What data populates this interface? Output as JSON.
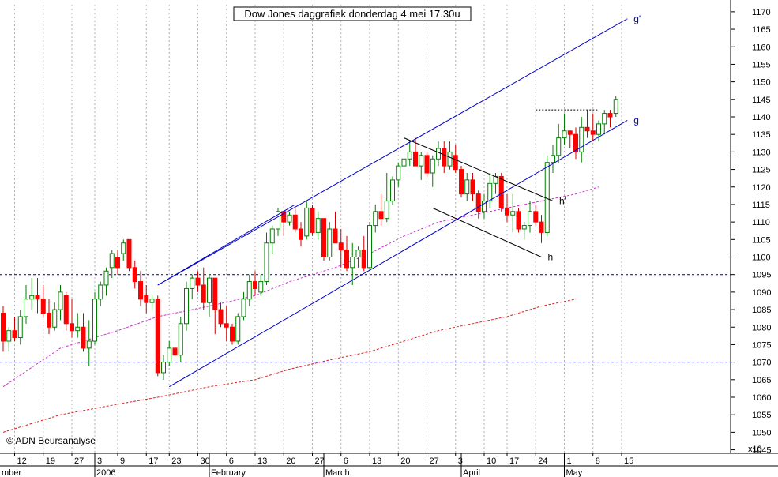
{
  "chart_data": {
    "type": "candlestick",
    "title": "Dow Jones daggrafiek donderdag 4 mei  17.30u",
    "watermark": "© ADN Beursanalyse",
    "y_axis": {
      "position": "right",
      "ylim": [
        1044,
        1172
      ],
      "ticks": [
        1045,
        1050,
        1055,
        1060,
        1065,
        1070,
        1075,
        1080,
        1085,
        1090,
        1095,
        1100,
        1105,
        1110,
        1115,
        1120,
        1125,
        1130,
        1135,
        1140,
        1145,
        1150,
        1155,
        1160,
        1165,
        1170
      ],
      "unit_label": "x10"
    },
    "x_axis": {
      "day_ticks": [
        {
          "label": "12",
          "idx": 2
        },
        {
          "label": "19",
          "idx": 7
        },
        {
          "label": "27",
          "idx": 12
        },
        {
          "label": "3",
          "idx": 16
        },
        {
          "label": "9",
          "idx": 20
        },
        {
          "label": "17",
          "idx": 25
        },
        {
          "label": "23",
          "idx": 29
        },
        {
          "label": "30",
          "idx": 34
        },
        {
          "label": "6",
          "idx": 39
        },
        {
          "label": "13",
          "idx": 44
        },
        {
          "label": "20",
          "idx": 49
        },
        {
          "label": "27",
          "idx": 54
        },
        {
          "label": "6",
          "idx": 59
        },
        {
          "label": "13",
          "idx": 64
        },
        {
          "label": "20",
          "idx": 69
        },
        {
          "label": "27",
          "idx": 74
        },
        {
          "label": "3",
          "idx": 79
        },
        {
          "label": "10",
          "idx": 84
        },
        {
          "label": "17",
          "idx": 88
        },
        {
          "label": "24",
          "idx": 93
        },
        {
          "label": "1",
          "idx": 98
        },
        {
          "label": "8",
          "idx": 103
        },
        {
          "label": "15",
          "idx": 108
        }
      ],
      "month_labels": [
        {
          "label": "mber",
          "idx": -1
        },
        {
          "label": "2006",
          "idx": 16
        },
        {
          "label": "February",
          "idx": 36
        },
        {
          "label": "March",
          "idx": 56
        },
        {
          "label": "April",
          "idx": 80
        },
        {
          "label": "May",
          "idx": 98
        }
      ]
    },
    "candles": [
      {
        "o": 1084,
        "h": 1086,
        "l": 1073,
        "c": 1076
      },
      {
        "o": 1076,
        "h": 1080,
        "l": 1073,
        "c": 1079
      },
      {
        "o": 1079,
        "h": 1083,
        "l": 1076,
        "c": 1077
      },
      {
        "o": 1077,
        "h": 1085,
        "l": 1075,
        "c": 1083
      },
      {
        "o": 1083,
        "h": 1092,
        "l": 1081,
        "c": 1088
      },
      {
        "o": 1088,
        "h": 1094,
        "l": 1085,
        "c": 1089
      },
      {
        "o": 1089,
        "h": 1094,
        "l": 1084,
        "c": 1088
      },
      {
        "o": 1088,
        "h": 1092,
        "l": 1083,
        "c": 1084
      },
      {
        "o": 1084,
        "h": 1088,
        "l": 1078,
        "c": 1080
      },
      {
        "o": 1080,
        "h": 1087,
        "l": 1079,
        "c": 1085
      },
      {
        "o": 1085,
        "h": 1092,
        "l": 1082,
        "c": 1090
      },
      {
        "o": 1089,
        "h": 1090,
        "l": 1079,
        "c": 1081
      },
      {
        "o": 1081,
        "h": 1088,
        "l": 1077,
        "c": 1079
      },
      {
        "o": 1079,
        "h": 1084,
        "l": 1077,
        "c": 1080
      },
      {
        "o": 1080,
        "h": 1084,
        "l": 1073,
        "c": 1074
      },
      {
        "o": 1074,
        "h": 1082,
        "l": 1069,
        "c": 1076
      },
      {
        "o": 1076,
        "h": 1090,
        "l": 1075,
        "c": 1088
      },
      {
        "o": 1088,
        "h": 1093,
        "l": 1086,
        "c": 1092
      },
      {
        "o": 1092,
        "h": 1097,
        "l": 1089,
        "c": 1096
      },
      {
        "o": 1097,
        "h": 1102,
        "l": 1094,
        "c": 1101
      },
      {
        "o": 1100,
        "h": 1102,
        "l": 1095,
        "c": 1097
      },
      {
        "o": 1101,
        "h": 1105,
        "l": 1099,
        "c": 1104
      },
      {
        "o": 1105,
        "h": 1105,
        "l": 1096,
        "c": 1097
      },
      {
        "o": 1097,
        "h": 1099,
        "l": 1091,
        "c": 1093
      },
      {
        "o": 1093,
        "h": 1096,
        "l": 1086,
        "c": 1088
      },
      {
        "o": 1089,
        "h": 1092,
        "l": 1084,
        "c": 1087
      },
      {
        "o": 1087,
        "h": 1089,
        "l": 1085,
        "c": 1088
      },
      {
        "o": 1088,
        "h": 1089,
        "l": 1066,
        "c": 1067
      },
      {
        "o": 1067,
        "h": 1072,
        "l": 1065,
        "c": 1070
      },
      {
        "o": 1070,
        "h": 1076,
        "l": 1069,
        "c": 1074
      },
      {
        "o": 1074,
        "h": 1081,
        "l": 1069,
        "c": 1072
      },
      {
        "o": 1072,
        "h": 1083,
        "l": 1070,
        "c": 1081
      },
      {
        "o": 1081,
        "h": 1093,
        "l": 1079,
        "c": 1091
      },
      {
        "o": 1091,
        "h": 1095,
        "l": 1088,
        "c": 1094
      },
      {
        "o": 1094,
        "h": 1096,
        "l": 1090,
        "c": 1092
      },
      {
        "o": 1092,
        "h": 1097,
        "l": 1085,
        "c": 1087
      },
      {
        "o": 1087,
        "h": 1095,
        "l": 1083,
        "c": 1094
      },
      {
        "o": 1094,
        "h": 1094,
        "l": 1078,
        "c": 1085
      },
      {
        "o": 1085,
        "h": 1087,
        "l": 1080,
        "c": 1081
      },
      {
        "o": 1081,
        "h": 1086,
        "l": 1076,
        "c": 1080
      },
      {
        "o": 1080,
        "h": 1081,
        "l": 1075,
        "c": 1076
      },
      {
        "o": 1076,
        "h": 1084,
        "l": 1075,
        "c": 1083
      },
      {
        "o": 1083,
        "h": 1090,
        "l": 1082,
        "c": 1088
      },
      {
        "o": 1088,
        "h": 1095,
        "l": 1086,
        "c": 1093
      },
      {
        "o": 1093,
        "h": 1096,
        "l": 1089,
        "c": 1091
      },
      {
        "o": 1090,
        "h": 1095,
        "l": 1089,
        "c": 1093
      },
      {
        "o": 1093,
        "h": 1107,
        "l": 1092,
        "c": 1104
      },
      {
        "o": 1104,
        "h": 1109,
        "l": 1101,
        "c": 1108
      },
      {
        "o": 1108,
        "h": 1114,
        "l": 1106,
        "c": 1113
      },
      {
        "o": 1113,
        "h": 1113,
        "l": 1106,
        "c": 1110
      },
      {
        "o": 1110,
        "h": 1113,
        "l": 1109,
        "c": 1112
      },
      {
        "o": 1112,
        "h": 1114,
        "l": 1107,
        "c": 1108
      },
      {
        "o": 1108,
        "h": 1110,
        "l": 1103,
        "c": 1105
      },
      {
        "o": 1106,
        "h": 1116,
        "l": 1105,
        "c": 1114
      },
      {
        "o": 1114,
        "h": 1115,
        "l": 1106,
        "c": 1107
      },
      {
        "o": 1107,
        "h": 1113,
        "l": 1105,
        "c": 1111
      },
      {
        "o": 1111,
        "h": 1111,
        "l": 1099,
        "c": 1100
      },
      {
        "o": 1100,
        "h": 1110,
        "l": 1099,
        "c": 1108
      },
      {
        "o": 1108,
        "h": 1113,
        "l": 1104,
        "c": 1104
      },
      {
        "o": 1104,
        "h": 1108,
        "l": 1097,
        "c": 1102
      },
      {
        "o": 1102,
        "h": 1106,
        "l": 1096,
        "c": 1097
      },
      {
        "o": 1097,
        "h": 1104,
        "l": 1092,
        "c": 1100
      },
      {
        "o": 1100,
        "h": 1103,
        "l": 1097,
        "c": 1102
      },
      {
        "o": 1102,
        "h": 1106,
        "l": 1096,
        "c": 1097
      },
      {
        "o": 1097,
        "h": 1110,
        "l": 1096,
        "c": 1109
      },
      {
        "o": 1109,
        "h": 1115,
        "l": 1107,
        "c": 1113
      },
      {
        "o": 1113,
        "h": 1118,
        "l": 1109,
        "c": 1111
      },
      {
        "o": 1111,
        "h": 1124,
        "l": 1110,
        "c": 1116
      },
      {
        "o": 1116,
        "h": 1123,
        "l": 1115,
        "c": 1122
      },
      {
        "o": 1122,
        "h": 1127,
        "l": 1120,
        "c": 1126
      },
      {
        "o": 1126,
        "h": 1130,
        "l": 1122,
        "c": 1128
      },
      {
        "o": 1128,
        "h": 1133,
        "l": 1126,
        "c": 1130
      },
      {
        "o": 1130,
        "h": 1134,
        "l": 1126,
        "c": 1126
      },
      {
        "o": 1126,
        "h": 1130,
        "l": 1122,
        "c": 1129
      },
      {
        "o": 1129,
        "h": 1130,
        "l": 1123,
        "c": 1124
      },
      {
        "o": 1124,
        "h": 1129,
        "l": 1120,
        "c": 1128
      },
      {
        "o": 1128,
        "h": 1133,
        "l": 1126,
        "c": 1131
      },
      {
        "o": 1131,
        "h": 1133,
        "l": 1124,
        "c": 1126
      },
      {
        "o": 1126,
        "h": 1133,
        "l": 1125,
        "c": 1130
      },
      {
        "o": 1129,
        "h": 1132,
        "l": 1124,
        "c": 1125
      },
      {
        "o": 1125,
        "h": 1126,
        "l": 1117,
        "c": 1118
      },
      {
        "o": 1118,
        "h": 1124,
        "l": 1116,
        "c": 1122
      },
      {
        "o": 1122,
        "h": 1124,
        "l": 1116,
        "c": 1118
      },
      {
        "o": 1118,
        "h": 1119,
        "l": 1111,
        "c": 1113
      },
      {
        "o": 1113,
        "h": 1118,
        "l": 1111,
        "c": 1116
      },
      {
        "o": 1116,
        "h": 1124,
        "l": 1114,
        "c": 1121
      },
      {
        "o": 1121,
        "h": 1124,
        "l": 1118,
        "c": 1123
      },
      {
        "o": 1123,
        "h": 1124,
        "l": 1113,
        "c": 1114
      },
      {
        "o": 1114,
        "h": 1118,
        "l": 1110,
        "c": 1112
      },
      {
        "o": 1112,
        "h": 1118,
        "l": 1107,
        "c": 1113
      },
      {
        "o": 1113,
        "h": 1114,
        "l": 1107,
        "c": 1108
      },
      {
        "o": 1108,
        "h": 1110,
        "l": 1105,
        "c": 1109
      },
      {
        "o": 1109,
        "h": 1116,
        "l": 1107,
        "c": 1113
      },
      {
        "o": 1113,
        "h": 1115,
        "l": 1109,
        "c": 1110
      },
      {
        "o": 1110,
        "h": 1112,
        "l": 1104,
        "c": 1107
      },
      {
        "o": 1107,
        "h": 1129,
        "l": 1106,
        "c": 1127
      },
      {
        "o": 1127,
        "h": 1132,
        "l": 1124,
        "c": 1129
      },
      {
        "o": 1129,
        "h": 1138,
        "l": 1127,
        "c": 1134
      },
      {
        "o": 1134,
        "h": 1141,
        "l": 1132,
        "c": 1136
      },
      {
        "o": 1136,
        "h": 1136,
        "l": 1131,
        "c": 1135
      },
      {
        "o": 1135,
        "h": 1137,
        "l": 1128,
        "c": 1130
      },
      {
        "o": 1130,
        "h": 1140,
        "l": 1127,
        "c": 1137
      },
      {
        "o": 1137,
        "h": 1142,
        "l": 1134,
        "c": 1136
      },
      {
        "o": 1136,
        "h": 1141,
        "l": 1133,
        "c": 1135
      },
      {
        "o": 1135,
        "h": 1139,
        "l": 1133,
        "c": 1138
      },
      {
        "o": 1138,
        "h": 1142,
        "l": 1135,
        "c": 1141
      },
      {
        "o": 1141,
        "h": 1142,
        "l": 1137,
        "c": 1140
      },
      {
        "o": 1141,
        "h": 1146,
        "l": 1140,
        "c": 1145
      }
    ],
    "moving_averages": [
      {
        "name": "short",
        "color": "#cc33cc",
        "points": [
          [
            0,
            1063
          ],
          [
            10,
            1074
          ],
          [
            20,
            1079
          ],
          [
            27,
            1083
          ],
          [
            36,
            1086
          ],
          [
            44,
            1089
          ],
          [
            50,
            1093
          ],
          [
            58,
            1097
          ],
          [
            64,
            1101
          ],
          [
            70,
            1106
          ],
          [
            76,
            1110
          ],
          [
            82,
            1112
          ],
          [
            88,
            1114
          ],
          [
            94,
            1116
          ],
          [
            100,
            1118
          ],
          [
            104,
            1120
          ]
        ]
      },
      {
        "name": "long",
        "color": "#dd2222",
        "points": [
          [
            0,
            1050
          ],
          [
            10,
            1055
          ],
          [
            20,
            1058
          ],
          [
            27,
            1060
          ],
          [
            36,
            1063
          ],
          [
            44,
            1065
          ],
          [
            50,
            1068
          ],
          [
            58,
            1071
          ],
          [
            64,
            1073
          ],
          [
            70,
            1076
          ],
          [
            76,
            1079
          ],
          [
            82,
            1081
          ],
          [
            88,
            1083
          ],
          [
            94,
            1086
          ],
          [
            100,
            1088
          ]
        ]
      }
    ],
    "horizontal_lines": [
      {
        "value": 1095,
        "color": "#000080",
        "style": "dashed"
      },
      {
        "value": 1070,
        "color": "#000080",
        "style": "dashed"
      }
    ],
    "trend_lines": [
      {
        "label": "g'",
        "color": "#0000cc",
        "from": [
          27,
          1092
        ],
        "to": [
          109,
          1168
        ]
      },
      {
        "label": "g",
        "color": "#0000cc",
        "from": [
          29,
          1063
        ],
        "to": [
          109,
          1139
        ]
      },
      {
        "label": "",
        "color": "#0000cc",
        "from": [
          27,
          1092
        ],
        "to": [
          51,
          1115
        ]
      },
      {
        "label": "h'",
        "color": "#000000",
        "from": [
          70,
          1134
        ],
        "to": [
          96,
          1116
        ]
      },
      {
        "label": "h",
        "color": "#000000",
        "from": [
          75,
          1114
        ],
        "to": [
          94,
          1100
        ]
      }
    ],
    "resistance_dotted": {
      "value": 1142,
      "from_idx": 93,
      "to_idx": 104,
      "color": "#000000"
    },
    "grid": {
      "vertical_dotted": true,
      "color": "#b0b0b0"
    }
  }
}
